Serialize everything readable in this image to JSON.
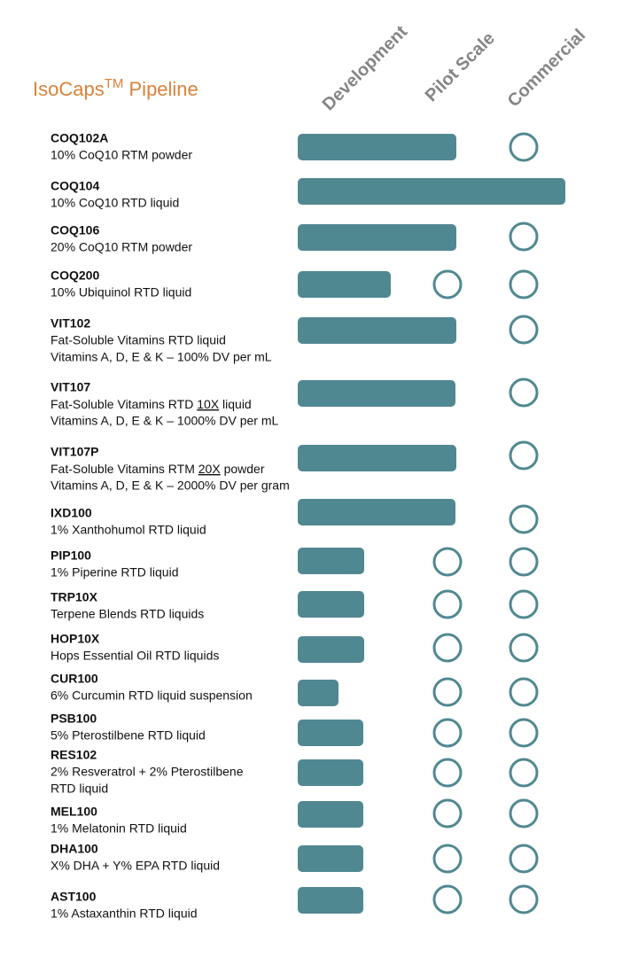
{
  "header": {
    "title": {
      "name": "IsoCaps",
      "mark": "TM",
      "suffix": " Pipeline"
    },
    "stages": [
      "Development",
      "Pilot Scale",
      "Commercial"
    ]
  },
  "rows": [
    {
      "code": "COQ102A",
      "lines": [
        "10% CoQ10 RTM powder"
      ]
    },
    {
      "code": "COQ104",
      "lines": [
        "10% CoQ10 RTD liquid"
      ]
    },
    {
      "code": "COQ106",
      "lines": [
        "20% CoQ10 RTM powder"
      ]
    },
    {
      "code": "COQ200",
      "lines": [
        "10% Ubiquinol RTD liquid"
      ]
    },
    {
      "code": "VIT102",
      "lines": [
        "Fat-Soluble Vitamins RTD liquid",
        "Vitamins A, D, E & K – 100% DV per mL"
      ]
    },
    {
      "code": "VIT107",
      "lines": [
        {
          "before": "Fat-Soluble Vitamins RTD ",
          "underlined": "10X",
          "after": " liquid"
        },
        "Vitamins A, D, E & K – 1000% DV per mL"
      ]
    },
    {
      "code": "VIT107P",
      "lines": [
        {
          "before": "Fat-Soluble Vitamins RTM ",
          "underlined": "20X",
          "after": " powder"
        },
        "Vitamins A, D, E & K – 2000% DV per gram"
      ]
    },
    {
      "code": "IXD100",
      "lines": [
        "1% Xanthohumol RTD liquid"
      ]
    },
    {
      "code": "PIP100",
      "lines": [
        "1% Piperine RTD liquid"
      ]
    },
    {
      "code": "TRP10X",
      "lines": [
        "Terpene Blends RTD liquids"
      ]
    },
    {
      "code": "HOP10X",
      "lines": [
        "Hops Essential Oil RTD liquids"
      ]
    },
    {
      "code": "CUR100",
      "lines": [
        "6% Curcumin RTD liquid suspension"
      ]
    },
    {
      "code": "PSB100",
      "lines": [
        "5% Pterostilbene RTD liquid"
      ]
    },
    {
      "code": "RES102",
      "lines": [
        "2% Resveratrol + 2% Pterostilbene",
        "RTD liquid"
      ]
    },
    {
      "code": "MEL100",
      "lines": [
        "1% Melatonin RTD liquid"
      ]
    },
    {
      "code": "DHA100",
      "lines": [
        "X% DHA + Y% EPA RTD liquid"
      ]
    },
    {
      "code": "AST100",
      "lines": [
        "1% Astaxanthin RTD liquid"
      ]
    }
  ]
}
